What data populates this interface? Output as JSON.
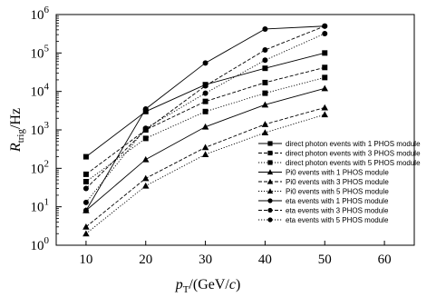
{
  "chart_data": {
    "type": "line",
    "xlabel": "pT/(GeV/c)",
    "ylabel": "Rtrig/Hz",
    "x_ticks": [
      "10",
      "20",
      "30",
      "40",
      "50",
      "60"
    ],
    "y_ticks": [
      "10^0",
      "10^1",
      "10^2",
      "10^3",
      "10^4",
      "10^5",
      "10^6"
    ],
    "xlim": [
      5,
      65
    ],
    "ylim": [
      1,
      1000000
    ],
    "y_scale": "log",
    "grid": false,
    "legend_position": "right",
    "x": [
      10,
      20,
      30,
      40,
      50
    ],
    "series": [
      {
        "name": "direct photon events with 1 PHOS module",
        "marker": "square",
        "dash": "solid",
        "values": [
          200,
          3000,
          15000,
          40000,
          100000
        ]
      },
      {
        "name": "direct photon events with 3 PHOS module",
        "marker": "square",
        "dash": "dashed",
        "values": [
          70,
          1000,
          5500,
          17000,
          42000
        ]
      },
      {
        "name": "direct photon events with 5 PHOS module",
        "marker": "square",
        "dash": "dotted",
        "values": [
          45,
          600,
          3000,
          9000,
          23000
        ]
      },
      {
        "name": "Pi0 events with 1 PHOS module",
        "marker": "triangle",
        "dash": "solid",
        "values": [
          8,
          170,
          1200,
          4500,
          12000
        ]
      },
      {
        "name": "Pi0 events with 3 PHOS module",
        "marker": "triangle",
        "dash": "dashed",
        "values": [
          3,
          55,
          350,
          1400,
          3800
        ]
      },
      {
        "name": "Pi0 events with 5 PHOS module",
        "marker": "triangle",
        "dash": "dotted",
        "values": [
          2,
          35,
          230,
          850,
          2500
        ]
      },
      {
        "name": "eta events with 1 PHOS module",
        "marker": "circle",
        "dash": "solid",
        "values": [
          8,
          3500,
          55000,
          420000,
          500000
        ]
      },
      {
        "name": "eta events with 3 PHOS module",
        "marker": "circle",
        "dash": "dashed",
        "values": [
          30,
          1000,
          14000,
          120000,
          500000
        ]
      },
      {
        "name": "eta events with 5 PHOS module",
        "marker": "circle",
        "dash": "dotted",
        "values": [
          13,
          1100,
          9000,
          65000,
          320000
        ]
      }
    ]
  }
}
